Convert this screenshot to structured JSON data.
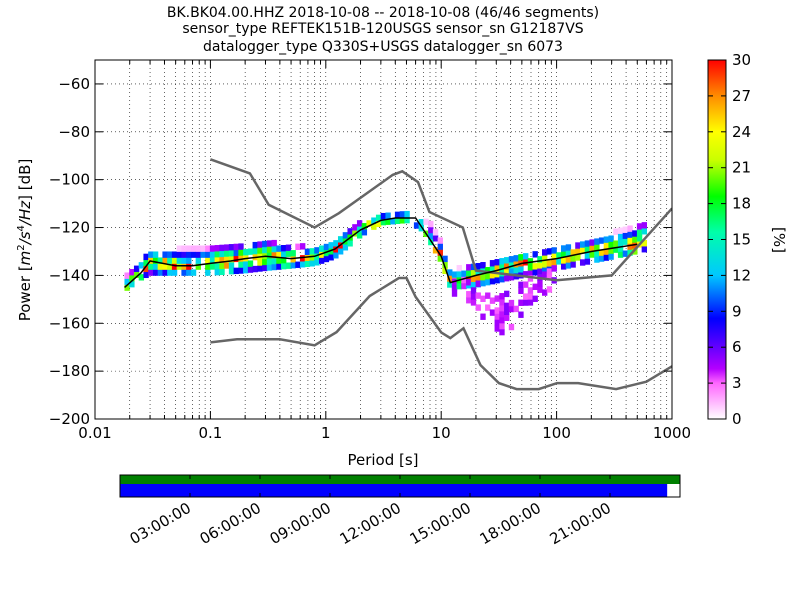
{
  "chart_data": {
    "type": "heatmap",
    "title_lines": [
      "BK.BK04.00.HHZ   2018-10-08 -- 2018-10-08  (46/46 segments)",
      "sensor_type REFTEK151B-120USGS sensor_sn G12187VS",
      "datalogger_type Q330S+USGS datalogger_sn 6073"
    ],
    "xlabel": "Period [s]",
    "ylabel": "Power [m²/s⁴/Hz] [dB]",
    "ylabel_parts": {
      "prefix": "Power [",
      "m": "m",
      "e1": "2",
      "s": "/s",
      "e2": "4",
      "hz": "/Hz",
      "suffix": "] [dB]"
    },
    "x_scale": "log",
    "xlim": [
      0.01,
      1000
    ],
    "ylim": [
      -200,
      -50
    ],
    "x_ticks": [
      {
        "value": 0.01,
        "label": "0.01"
      },
      {
        "value": 0.1,
        "label": "0.1"
      },
      {
        "value": 1,
        "label": "1"
      },
      {
        "value": 10,
        "label": "10"
      },
      {
        "value": 100,
        "label": "100"
      },
      {
        "value": 1000,
        "label": "1000"
      }
    ],
    "y_ticks": [
      {
        "value": -60,
        "label": "−60"
      },
      {
        "value": -80,
        "label": "−80"
      },
      {
        "value": -100,
        "label": "−100"
      },
      {
        "value": -120,
        "label": "−120"
      },
      {
        "value": -140,
        "label": "−140"
      },
      {
        "value": -160,
        "label": "−160"
      },
      {
        "value": -180,
        "label": "−180"
      },
      {
        "value": -200,
        "label": "−200"
      }
    ],
    "grid": "dotted",
    "colorbar": {
      "label": "[%]",
      "range": [
        0,
        30
      ],
      "ticks": [
        {
          "value": 0,
          "label": "0"
        },
        {
          "value": 3,
          "label": "3"
        },
        {
          "value": 6,
          "label": "6"
        },
        {
          "value": 9,
          "label": "9"
        },
        {
          "value": 12,
          "label": "12"
        },
        {
          "value": 15,
          "label": "15"
        },
        {
          "value": 18,
          "label": "18"
        },
        {
          "value": 21,
          "label": "21"
        },
        {
          "value": 24,
          "label": "24"
        },
        {
          "value": 27,
          "label": "27"
        },
        {
          "value": 30,
          "label": "30"
        }
      ]
    },
    "mode_curve": [
      [
        0.018,
        -145
      ],
      [
        0.025,
        -139
      ],
      [
        0.03,
        -134
      ],
      [
        0.05,
        -136
      ],
      [
        0.07,
        -136
      ],
      [
        0.1,
        -135
      ],
      [
        0.15,
        -134
      ],
      [
        0.2,
        -133
      ],
      [
        0.3,
        -132
      ],
      [
        0.5,
        -133
      ],
      [
        0.8,
        -132
      ],
      [
        1.2,
        -129
      ],
      [
        2,
        -121
      ],
      [
        3,
        -117
      ],
      [
        4,
        -116
      ],
      [
        6,
        -116
      ],
      [
        8,
        -125
      ],
      [
        10,
        -132
      ],
      [
        12,
        -143
      ],
      [
        20,
        -140
      ],
      [
        30,
        -138
      ],
      [
        50,
        -135
      ],
      [
        100,
        -133
      ],
      [
        200,
        -130
      ],
      [
        500,
        -127
      ]
    ],
    "density_band": [
      {
        "x": 0.018,
        "low": -147,
        "high": -141
      },
      {
        "x": 0.025,
        "low": -142,
        "high": -135
      },
      {
        "x": 0.03,
        "low": -140,
        "high": -130
      },
      {
        "x": 0.05,
        "low": -140,
        "high": -130
      },
      {
        "x": 0.1,
        "low": -140,
        "high": -128
      },
      {
        "x": 0.2,
        "low": -139,
        "high": -127
      },
      {
        "x": 0.3,
        "low": -138,
        "high": -126
      },
      {
        "x": 0.5,
        "low": -137,
        "high": -128
      },
      {
        "x": 0.8,
        "low": -136,
        "high": -129
      },
      {
        "x": 1.2,
        "low": -133,
        "high": -126
      },
      {
        "x": 2,
        "low": -124,
        "high": -119
      },
      {
        "x": 3,
        "low": -119,
        "high": -116
      },
      {
        "x": 5,
        "low": -118,
        "high": -115
      },
      {
        "x": 7,
        "low": -122,
        "high": -116
      },
      {
        "x": 10,
        "low": -135,
        "high": -125
      },
      {
        "x": 12,
        "low": -146,
        "high": -139
      },
      {
        "x": 20,
        "low": -145,
        "high": -136
      },
      {
        "x": 50,
        "low": -141,
        "high": -132
      },
      {
        "x": 100,
        "low": -138,
        "high": -129
      },
      {
        "x": 200,
        "low": -135,
        "high": -127
      },
      {
        "x": 400,
        "low": -132,
        "high": -121
      },
      {
        "x": 600,
        "low": -130,
        "high": -119
      }
    ],
    "low_tail": [
      {
        "x": 12,
        "low": -148,
        "high": -140
      },
      {
        "x": 20,
        "low": -153,
        "high": -142
      },
      {
        "x": 25,
        "low": -162,
        "high": -148
      },
      {
        "x": 30,
        "low": -166,
        "high": -150
      },
      {
        "x": 40,
        "low": -163,
        "high": -148
      },
      {
        "x": 60,
        "low": -152,
        "high": -142
      },
      {
        "x": 100,
        "low": -145,
        "high": -136
      }
    ],
    "nhnm": [
      [
        0.1,
        -91.5
      ],
      [
        0.22,
        -97.4
      ],
      [
        0.32,
        -110.5
      ],
      [
        0.8,
        -120
      ],
      [
        1.3,
        -114
      ],
      [
        3.8,
        -98
      ],
      [
        4.6,
        -96.5
      ],
      [
        6.3,
        -101
      ],
      [
        7.9,
        -113.5
      ],
      [
        15.4,
        -120
      ],
      [
        20,
        -138
      ],
      [
        100,
        -142
      ],
      [
        300,
        -140
      ],
      [
        1000,
        -112
      ]
    ],
    "nlnm": [
      [
        0.1,
        -168
      ],
      [
        0.17,
        -166.7
      ],
      [
        0.4,
        -166.7
      ],
      [
        0.8,
        -169.2
      ],
      [
        1.24,
        -163.7
      ],
      [
        2.4,
        -148.6
      ],
      [
        4.3,
        -141.1
      ],
      [
        5,
        -141.1
      ],
      [
        6,
        -149
      ],
      [
        10,
        -163.8
      ],
      [
        12,
        -166.2
      ],
      [
        15.6,
        -162.1
      ],
      [
        21.9,
        -177.5
      ],
      [
        31.6,
        -185
      ],
      [
        45,
        -187.5
      ],
      [
        70,
        -187.5
      ],
      [
        101,
        -185
      ],
      [
        154,
        -185
      ],
      [
        328,
        -187.5
      ],
      [
        600,
        -184.4
      ],
      [
        1000,
        -178
      ]
    ],
    "timeline": {
      "ticks": [
        {
          "value": 3,
          "label": "03:00:00"
        },
        {
          "value": 6,
          "label": "06:00:00"
        },
        {
          "value": 9,
          "label": "09:00:00"
        },
        {
          "value": 12,
          "label": "12:00:00"
        },
        {
          "value": 15,
          "label": "15:00:00"
        },
        {
          "value": 18,
          "label": "18:00:00"
        },
        {
          "value": 21,
          "label": "21:00:00"
        }
      ],
      "range_hours": [
        0,
        24
      ],
      "data_coverage_end_hours": 24,
      "used_coverage_end_hours": 23.45,
      "data_color": "#008000",
      "used_color": "#0000ff"
    }
  }
}
